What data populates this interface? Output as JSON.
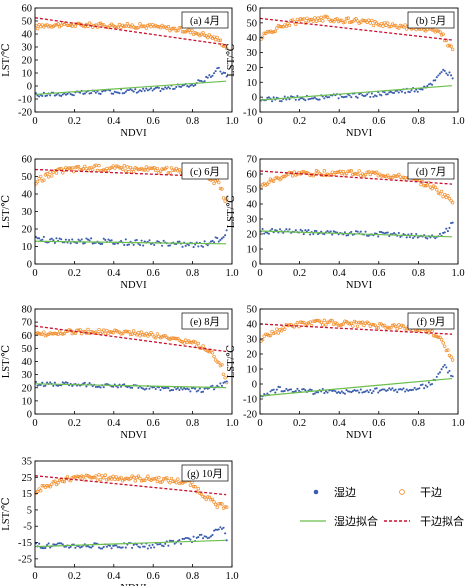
{
  "figure": {
    "xlabel": "NDVI",
    "ylabel": "LST/℃"
  },
  "legend": {
    "wet_points": "湿边",
    "dry_points": "干边",
    "wet_fit": "湿边拟合",
    "dry_fit": "干边拟合"
  },
  "colors": {
    "wet_points": "#3A5DAE",
    "dry_points": "#F28E2B",
    "wet_fit": "#6BBF4A",
    "dry_fit": "#C8102E"
  },
  "chart_data": [
    {
      "type": "scatter",
      "label": "(a) 4月",
      "xlabel": "NDVI",
      "ylabel": "LST/℃",
      "xlim": [
        0,
        1.0
      ],
      "ylim": [
        -20,
        60
      ],
      "x_ticks": [
        "0",
        "0.2",
        "0.4",
        "0.6",
        "0.8",
        "1.0"
      ],
      "y_ticks": [
        "-20",
        "-10",
        "0",
        "10",
        "20",
        "30",
        "40",
        "50",
        "60"
      ],
      "dry_profile": [
        [
          0.0,
          45
        ],
        [
          0.05,
          47
        ],
        [
          0.2,
          47
        ],
        [
          0.6,
          46
        ],
        [
          0.75,
          43
        ],
        [
          0.85,
          40
        ],
        [
          0.93,
          36
        ],
        [
          0.97,
          30
        ]
      ],
      "wet_profile": [
        [
          0.0,
          -7
        ],
        [
          0.3,
          -5
        ],
        [
          0.6,
          -3
        ],
        [
          0.8,
          1
        ],
        [
          0.88,
          6
        ],
        [
          0.93,
          13
        ],
        [
          0.97,
          8
        ]
      ],
      "dry_fit": {
        "slope": -21.5,
        "intercept": 52.5
      },
      "wet_fit": {
        "slope": 10.5,
        "intercept": -6.5
      },
      "legend": [
        "湿边",
        "干边",
        "湿边拟合",
        "干边拟合"
      ]
    },
    {
      "type": "scatter",
      "label": "(b) 5月",
      "xlabel": "NDVI",
      "ylabel": "LST/℃",
      "xlim": [
        0,
        1.0
      ],
      "ylim": [
        -10,
        60
      ],
      "x_ticks": [
        "0",
        "0.2",
        "0.4",
        "0.6",
        "0.8",
        "1.0"
      ],
      "y_ticks": [
        "-10",
        "0",
        "10",
        "20",
        "30",
        "40",
        "50",
        "60"
      ],
      "dry_profile": [
        [
          0.0,
          40
        ],
        [
          0.05,
          44
        ],
        [
          0.15,
          50
        ],
        [
          0.3,
          53
        ],
        [
          0.5,
          51
        ],
        [
          0.7,
          48
        ],
        [
          0.85,
          46
        ],
        [
          0.92,
          42
        ],
        [
          0.97,
          32
        ]
      ],
      "wet_profile": [
        [
          0.0,
          -2
        ],
        [
          0.3,
          0
        ],
        [
          0.6,
          2
        ],
        [
          0.8,
          5
        ],
        [
          0.88,
          10
        ],
        [
          0.93,
          18
        ],
        [
          0.97,
          14
        ]
      ],
      "dry_fit": {
        "slope": -15,
        "intercept": 53
      },
      "wet_fit": {
        "slope": 10,
        "intercept": -2
      },
      "legend": [
        "湿边",
        "干边",
        "湿边拟合",
        "干边拟合"
      ]
    },
    {
      "type": "scatter",
      "label": "(c) 6月",
      "xlabel": "NDVI",
      "ylabel": "LST/℃",
      "xlim": [
        0,
        1.0
      ],
      "ylim": [
        0,
        60
      ],
      "x_ticks": [
        "0",
        "0.2",
        "0.4",
        "0.6",
        "0.8",
        "1.0"
      ],
      "y_ticks": [
        "0",
        "10",
        "20",
        "30",
        "40",
        "50",
        "60"
      ],
      "dry_profile": [
        [
          0.0,
          46
        ],
        [
          0.05,
          50
        ],
        [
          0.15,
          54
        ],
        [
          0.3,
          55
        ],
        [
          0.6,
          54
        ],
        [
          0.8,
          53
        ],
        [
          0.88,
          50
        ],
        [
          0.93,
          46
        ],
        [
          0.97,
          36
        ]
      ],
      "wet_profile": [
        [
          0.0,
          14
        ],
        [
          0.3,
          13
        ],
        [
          0.6,
          12
        ],
        [
          0.85,
          11
        ],
        [
          0.93,
          14
        ],
        [
          0.97,
          18
        ]
      ],
      "dry_fit": {
        "slope": -4.5,
        "intercept": 54
      },
      "wet_fit": {
        "slope": -1.5,
        "intercept": 13
      },
      "legend": [
        "湿边",
        "干边",
        "湿边拟合",
        "干边拟合"
      ]
    },
    {
      "type": "scatter",
      "label": "(d) 7月",
      "xlabel": "NDVI",
      "ylabel": "LST/℃",
      "xlim": [
        0,
        1.0
      ],
      "ylim": [
        0,
        70
      ],
      "x_ticks": [
        "0",
        "0.2",
        "0.4",
        "0.6",
        "0.8",
        "1.0"
      ],
      "y_ticks": [
        "0",
        "10",
        "20",
        "30",
        "40",
        "50",
        "60",
        "70"
      ],
      "dry_profile": [
        [
          0.0,
          51
        ],
        [
          0.05,
          55
        ],
        [
          0.15,
          60
        ],
        [
          0.4,
          61
        ],
        [
          0.6,
          60
        ],
        [
          0.75,
          57
        ],
        [
          0.85,
          53
        ],
        [
          0.93,
          46
        ],
        [
          0.97,
          42
        ]
      ],
      "wet_profile": [
        [
          0.0,
          22
        ],
        [
          0.3,
          21
        ],
        [
          0.6,
          20
        ],
        [
          0.85,
          18
        ],
        [
          0.93,
          20
        ],
        [
          0.97,
          27
        ]
      ],
      "dry_fit": {
        "slope": -9,
        "intercept": 62
      },
      "wet_fit": {
        "slope": -4,
        "intercept": 22
      },
      "legend": [
        "湿边",
        "干边",
        "湿边拟合",
        "干边拟合"
      ]
    },
    {
      "type": "scatter",
      "label": "(e) 8月",
      "xlabel": "NDVI",
      "ylabel": "LST/℃",
      "xlim": [
        0,
        1.0
      ],
      "ylim": [
        0,
        80
      ],
      "x_ticks": [
        "0",
        "0.2",
        "0.4",
        "0.6",
        "0.8",
        "1.0"
      ],
      "y_ticks": [
        "0",
        "10",
        "20",
        "30",
        "40",
        "50",
        "60",
        "70",
        "80"
      ],
      "dry_profile": [
        [
          0.0,
          60
        ],
        [
          0.1,
          62
        ],
        [
          0.3,
          63
        ],
        [
          0.5,
          62
        ],
        [
          0.7,
          58
        ],
        [
          0.82,
          53
        ],
        [
          0.9,
          46
        ],
        [
          0.95,
          36
        ],
        [
          0.97,
          24
        ]
      ],
      "wet_profile": [
        [
          0.0,
          23
        ],
        [
          0.3,
          22
        ],
        [
          0.6,
          20
        ],
        [
          0.85,
          18
        ],
        [
          0.93,
          21
        ],
        [
          0.97,
          25
        ]
      ],
      "dry_fit": {
        "slope": -20,
        "intercept": 67
      },
      "wet_fit": {
        "slope": -3,
        "intercept": 23
      },
      "legend": [
        "湿边",
        "干边",
        "湿边拟合",
        "干边拟合"
      ]
    },
    {
      "type": "scatter",
      "label": "(f) 9月",
      "xlabel": "NDVI",
      "ylabel": "LST/℃",
      "xlim": [
        0,
        1.0
      ],
      "ylim": [
        -20,
        50
      ],
      "x_ticks": [
        "0",
        "0.2",
        "0.4",
        "0.6",
        "0.8",
        "1.0"
      ],
      "y_ticks": [
        "-20",
        "-10",
        "0",
        "10",
        "20",
        "30",
        "40",
        "50"
      ],
      "dry_profile": [
        [
          0.0,
          30
        ],
        [
          0.05,
          33
        ],
        [
          0.15,
          39
        ],
        [
          0.3,
          41
        ],
        [
          0.5,
          40
        ],
        [
          0.7,
          38
        ],
        [
          0.85,
          36
        ],
        [
          0.92,
          30
        ],
        [
          0.97,
          15
        ]
      ],
      "wet_profile": [
        [
          0.0,
          -8
        ],
        [
          0.1,
          -3
        ],
        [
          0.2,
          -5
        ],
        [
          0.5,
          -5
        ],
        [
          0.8,
          -3
        ],
        [
          0.88,
          2
        ],
        [
          0.93,
          12
        ],
        [
          0.97,
          6
        ]
      ],
      "dry_fit": {
        "slope": -7,
        "intercept": 40
      },
      "wet_fit": {
        "slope": 12,
        "intercept": -8
      },
      "legend": [
        "湿边",
        "干边",
        "湿边拟合",
        "干边拟合"
      ]
    },
    {
      "type": "scatter",
      "label": "(g) 10月",
      "xlabel": "NDVI",
      "ylabel": "LST/℃",
      "xlim": [
        0,
        1.0
      ],
      "ylim": [
        -30,
        35
      ],
      "x_ticks": [
        "0",
        "0.2",
        "0.4",
        "0.6",
        "0.8",
        "1.0"
      ],
      "y_ticks": [
        "-25",
        "-15",
        "-5",
        "5",
        "15",
        "25",
        "35"
      ],
      "dry_profile": [
        [
          0.0,
          16
        ],
        [
          0.05,
          19
        ],
        [
          0.15,
          24
        ],
        [
          0.3,
          25
        ],
        [
          0.6,
          24
        ],
        [
          0.78,
          22
        ],
        [
          0.88,
          12
        ],
        [
          0.93,
          7
        ],
        [
          0.97,
          8
        ]
      ],
      "wet_profile": [
        [
          0.0,
          -17
        ],
        [
          0.3,
          -17
        ],
        [
          0.6,
          -17
        ],
        [
          0.8,
          -13
        ],
        [
          0.9,
          -10
        ],
        [
          0.95,
          -5
        ],
        [
          0.97,
          -12
        ]
      ],
      "dry_fit": {
        "slope": -12,
        "intercept": 26
      },
      "wet_fit": {
        "slope": 4,
        "intercept": -17.5
      },
      "legend": [
        "湿边",
        "干边",
        "湿边拟合",
        "干边拟合"
      ]
    }
  ]
}
